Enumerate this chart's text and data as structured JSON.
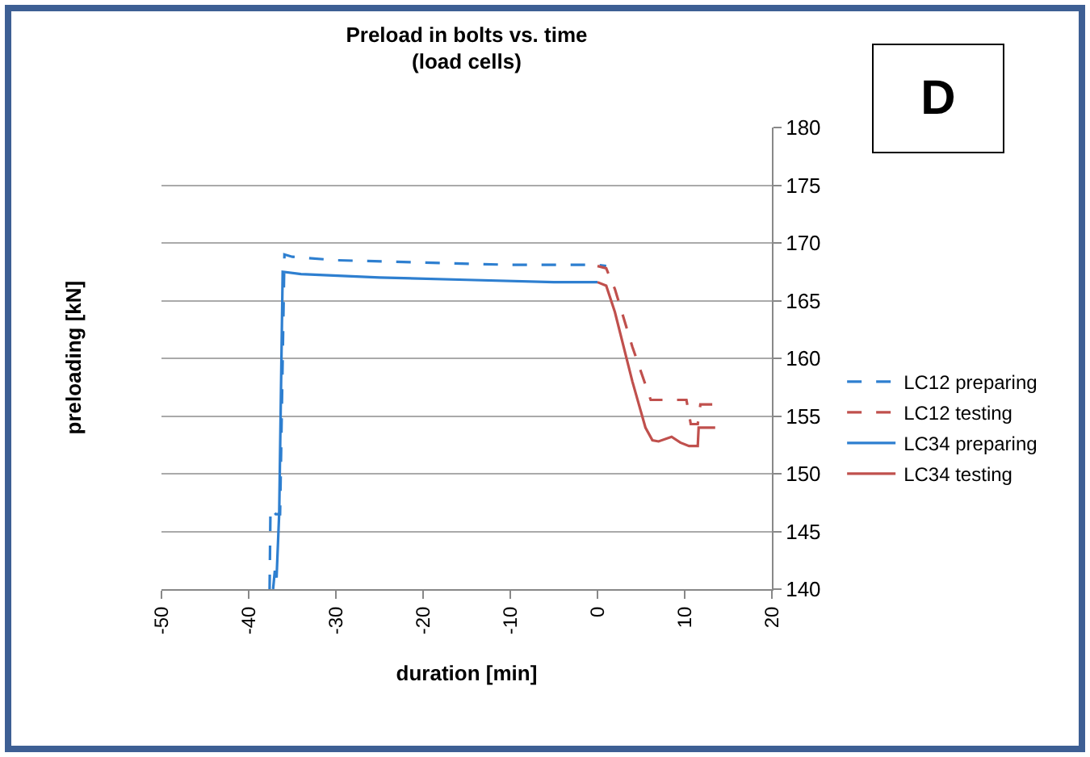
{
  "chart_data": {
    "type": "line",
    "title": "Preload in bolts vs. time\n(load cells)",
    "xlabel": "duration [min]",
    "ylabel": "preloading [kN]",
    "xlim": [
      -50,
      20
    ],
    "xticks": [
      -50,
      -40,
      -30,
      -20,
      -10,
      0,
      10,
      20
    ],
    "ylim": [
      140,
      180
    ],
    "yticks": [
      140,
      145,
      150,
      155,
      160,
      165,
      170,
      175,
      180
    ],
    "grid": "y",
    "legend": "right",
    "annotations": [
      "D"
    ],
    "series": [
      {
        "name": "LC12 preparing",
        "color": "#2e7fd0",
        "line_style": "dashed",
        "x": [
          -37.6,
          -37.5,
          -36.9,
          -36.4,
          -35.9,
          -35,
          -30,
          -20,
          -10,
          0,
          1
        ],
        "values": [
          140,
          147,
          146.5,
          146.5,
          169,
          168.8,
          168.5,
          168.3,
          168.1,
          168.1,
          168.0
        ]
      },
      {
        "name": "LC12 testing",
        "color": "#c0504d",
        "line_style": "dashed",
        "x": [
          0,
          1,
          2,
          4,
          6.1,
          8,
          10.2,
          10.7,
          11.5,
          11.8,
          13.5
        ],
        "values": [
          168.0,
          167.8,
          166,
          161,
          156.4,
          156.4,
          156.4,
          154.3,
          154.3,
          156,
          156
        ]
      },
      {
        "name": "LC34 preparing",
        "color": "#2e7fd0",
        "line_style": "solid",
        "x": [
          -37.2,
          -37.0,
          -36.8,
          -36.5,
          -36.1,
          -34,
          -25,
          -15,
          -5,
          0
        ],
        "values": [
          140,
          141.6,
          141,
          146.6,
          167.5,
          167.3,
          167,
          166.8,
          166.6,
          166.6
        ]
      },
      {
        "name": "LC34 testing",
        "color": "#c0504d",
        "line_style": "solid",
        "x": [
          0,
          1,
          2,
          4,
          5.5,
          6.3,
          7,
          8.5,
          9.5,
          10.5,
          11.5,
          11.6,
          13.5
        ],
        "values": [
          166.6,
          166.3,
          164,
          158,
          154,
          152.9,
          152.8,
          153.2,
          152.7,
          152.4,
          152.4,
          154,
          154
        ]
      }
    ]
  }
}
